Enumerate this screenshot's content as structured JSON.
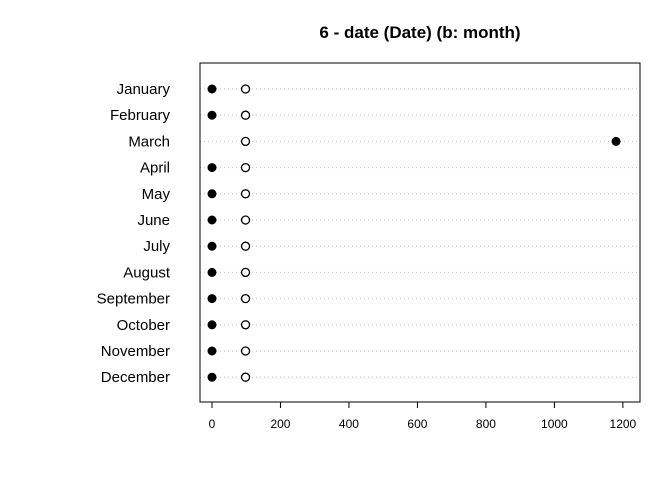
{
  "chart_data": {
    "type": "scatter",
    "title": "6 - date (Date) (b: month)",
    "xlabel": "",
    "ylabel": "",
    "xlim": [
      -35,
      1250
    ],
    "x_ticks": [
      0,
      200,
      400,
      600,
      800,
      1000,
      1200
    ],
    "grid": "horizontal dotted",
    "categories": [
      "January",
      "February",
      "March",
      "April",
      "May",
      "June",
      "July",
      "August",
      "September",
      "October",
      "November",
      "December"
    ],
    "series": [
      {
        "marker": "filled-circle",
        "color": "#000000",
        "values": [
          0,
          0,
          1180,
          0,
          0,
          0,
          0,
          0,
          0,
          0,
          0,
          0
        ]
      },
      {
        "marker": "open-circle",
        "color": "#000000",
        "values": [
          98,
          98,
          98,
          98,
          98,
          98,
          98,
          98,
          98,
          98,
          98,
          98
        ]
      }
    ]
  }
}
